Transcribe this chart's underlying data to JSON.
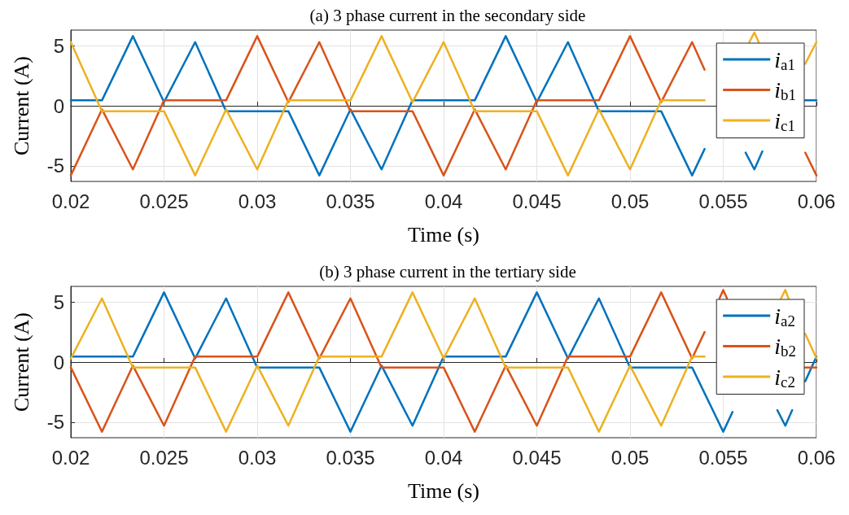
{
  "chart_data": [
    {
      "type": "line",
      "title": "(a) 3 phase current in the secondary side",
      "xlabel": "Time (s)",
      "ylabel": "Current (A)",
      "xlim": [
        0.02,
        0.06
      ],
      "xticks": [
        0.02,
        0.025,
        0.03,
        0.035,
        0.04,
        0.045,
        0.05,
        0.055,
        0.06
      ],
      "ylim": [
        -6.3,
        6.3
      ],
      "yticks": [
        -5,
        0,
        5
      ],
      "grid": true,
      "legend": "top right",
      "series": [
        {
          "name": "i$_{a1}$",
          "color": "#0072bd",
          "x": [
            0.02,
            0.02167,
            0.02333,
            0.025,
            0.02667,
            0.02833,
            0.03167,
            0.03333,
            0.035,
            0.03667,
            0.03833,
            0.04167,
            0.04333,
            0.045,
            0.04667,
            0.04833,
            0.05167,
            0.05333,
            0.054,
            0.055,
            0.0562,
            0.05667,
            0.0571,
            0.05833,
            0.0594,
            0.06
          ],
          "values": [
            0.45,
            0.45,
            5.8,
            0.3,
            5.3,
            -0.45,
            -0.45,
            -5.8,
            -0.3,
            -5.3,
            0.45,
            0.45,
            5.8,
            0.3,
            5.3,
            -0.45,
            -0.45,
            -5.8,
            -3.6,
            null,
            -3.9,
            -5.3,
            -3.8,
            null,
            0.45,
            0.45
          ]
        },
        {
          "name": "i$_{b1}$",
          "color": "#d95319",
          "x": [
            0.02,
            0.02167,
            0.02333,
            0.025,
            0.02833,
            0.03,
            0.03167,
            0.03333,
            0.035,
            0.03833,
            0.04,
            0.04167,
            0.04333,
            0.045,
            0.04833,
            0.05,
            0.05167,
            0.05333,
            0.054,
            0.055,
            0.0594,
            0.06
          ],
          "values": [
            -5.8,
            -0.3,
            -5.3,
            0.45,
            0.45,
            5.8,
            0.3,
            5.3,
            -0.45,
            -0.45,
            -5.8,
            -0.3,
            -5.3,
            0.45,
            0.45,
            5.8,
            0.3,
            5.3,
            3.0,
            null,
            -3.9,
            -5.8
          ]
        },
        {
          "name": "i$_{c1}$",
          "color": "#edb120",
          "x": [
            0.02,
            0.02167,
            0.025,
            0.02667,
            0.02833,
            0.03,
            0.03167,
            0.035,
            0.03667,
            0.03833,
            0.04,
            0.04167,
            0.045,
            0.04667,
            0.04833,
            0.05,
            0.05167,
            0.054,
            0.055,
            0.0564,
            0.05667,
            0.0569,
            0.05833,
            0.0594,
            0.06
          ],
          "values": [
            5.3,
            -0.45,
            -0.45,
            -5.8,
            -0.3,
            -5.3,
            0.45,
            0.45,
            5.8,
            0.3,
            5.3,
            -0.45,
            -0.45,
            -5.8,
            -0.3,
            -5.3,
            0.45,
            0.45,
            null,
            5.3,
            6.1,
            5.3,
            null,
            3.5,
            5.3
          ]
        }
      ]
    },
    {
      "type": "line",
      "title": "(b) 3 phase current in the tertiary side",
      "xlabel": "Time (s)",
      "ylabel": "Current (A)",
      "xlim": [
        0.02,
        0.06
      ],
      "xticks": [
        0.02,
        0.025,
        0.03,
        0.035,
        0.04,
        0.045,
        0.05,
        0.055,
        0.06
      ],
      "ylim": [
        -6.3,
        6.3
      ],
      "yticks": [
        -5,
        0,
        5
      ],
      "grid": true,
      "legend": "top right",
      "series": [
        {
          "name": "i$_{a2}$",
          "color": "#0072bd",
          "x": [
            0.02,
            0.02333,
            0.025,
            0.02667,
            0.02833,
            0.03,
            0.03333,
            0.035,
            0.03667,
            0.03833,
            0.04,
            0.04333,
            0.045,
            0.04667,
            0.04833,
            0.05,
            0.05333,
            0.055,
            0.0555,
            0.05667,
            0.0579,
            0.05833,
            0.0587,
            0.059,
            0.0594,
            0.06
          ],
          "values": [
            0.45,
            0.45,
            5.8,
            0.3,
            5.3,
            -0.45,
            -0.45,
            -5.8,
            -0.3,
            -5.3,
            0.45,
            0.45,
            5.8,
            0.3,
            5.3,
            -0.45,
            -0.45,
            -5.8,
            -4.15,
            null,
            -4.0,
            -5.3,
            -4.0,
            null,
            -1.6,
            0.45
          ]
        },
        {
          "name": "i$_{b2}$",
          "color": "#d95319",
          "x": [
            0.02,
            0.02167,
            0.02333,
            0.025,
            0.02667,
            0.03,
            0.03167,
            0.03333,
            0.035,
            0.03667,
            0.04,
            0.04167,
            0.04333,
            0.045,
            0.04667,
            0.05,
            0.05167,
            0.05333,
            0.054,
            0.0545,
            0.0548,
            0.055,
            0.0552,
            0.05667,
            0.0594,
            0.06
          ],
          "values": [
            -0.45,
            -5.8,
            -0.3,
            -5.3,
            0.45,
            0.45,
            5.8,
            0.3,
            5.3,
            -0.45,
            -0.45,
            -5.8,
            -0.3,
            -5.3,
            0.45,
            0.45,
            5.8,
            0.3,
            2.5,
            null,
            5.3,
            6.0,
            5.3,
            null,
            -0.45,
            -0.45
          ]
        },
        {
          "name": "i$_{c2}$",
          "color": "#edb120",
          "x": [
            0.02,
            0.02167,
            0.02333,
            0.02667,
            0.02833,
            0.03,
            0.03167,
            0.03333,
            0.03667,
            0.03833,
            0.04,
            0.04167,
            0.04333,
            0.04667,
            0.04833,
            0.05,
            0.05167,
            0.05333,
            0.054,
            0.055,
            0.0581,
            0.05833,
            0.0585,
            0.059,
            0.0594,
            0.06
          ],
          "values": [
            0.3,
            5.3,
            -0.45,
            -0.45,
            -5.8,
            -0.3,
            -5.3,
            0.45,
            0.45,
            5.8,
            0.3,
            5.3,
            -0.45,
            -0.45,
            -5.8,
            -0.3,
            -5.3,
            0.45,
            0.45,
            null,
            5.3,
            6.0,
            5.3,
            null,
            2.35,
            0.3
          ]
        }
      ]
    }
  ]
}
